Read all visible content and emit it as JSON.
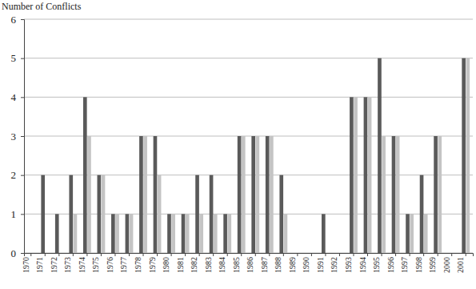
{
  "chart_data": {
    "type": "bar",
    "y_label": "Number of Conflicts",
    "categories": [
      "1970",
      "1971",
      "1972",
      "1973",
      "1974",
      "1975",
      "1976",
      "1977",
      "1978",
      "1979",
      "1980",
      "1981",
      "1982",
      "1983",
      "1984",
      "1985",
      "1986",
      "1987",
      "1988",
      "1989",
      "1990",
      "1991",
      "1992",
      "1993",
      "1994",
      "1995",
      "1996",
      "1997",
      "1998",
      "1999",
      "2000",
      "2001"
    ],
    "series": [
      {
        "color": "#5a5a5a",
        "values": [
          0,
          2,
          1,
          2,
          4,
          2,
          1,
          1,
          3,
          3,
          1,
          1,
          2,
          2,
          1,
          3,
          3,
          3,
          2,
          0,
          0,
          1,
          0,
          4,
          4,
          5,
          3,
          1,
          2,
          3,
          0,
          5
        ]
      },
      {
        "color": "#c4c4c4",
        "values": [
          0,
          0,
          0,
          1,
          3,
          2,
          1,
          1,
          3,
          2,
          1,
          1,
          1,
          1,
          1,
          3,
          3,
          3,
          1,
          0,
          0,
          0,
          0,
          4,
          4,
          3,
          3,
          1,
          1,
          3,
          0,
          5
        ]
      }
    ],
    "ylim": [
      0,
      6
    ],
    "yticks": [
      0,
      1,
      2,
      3,
      4,
      5,
      6
    ],
    "grid": true
  }
}
